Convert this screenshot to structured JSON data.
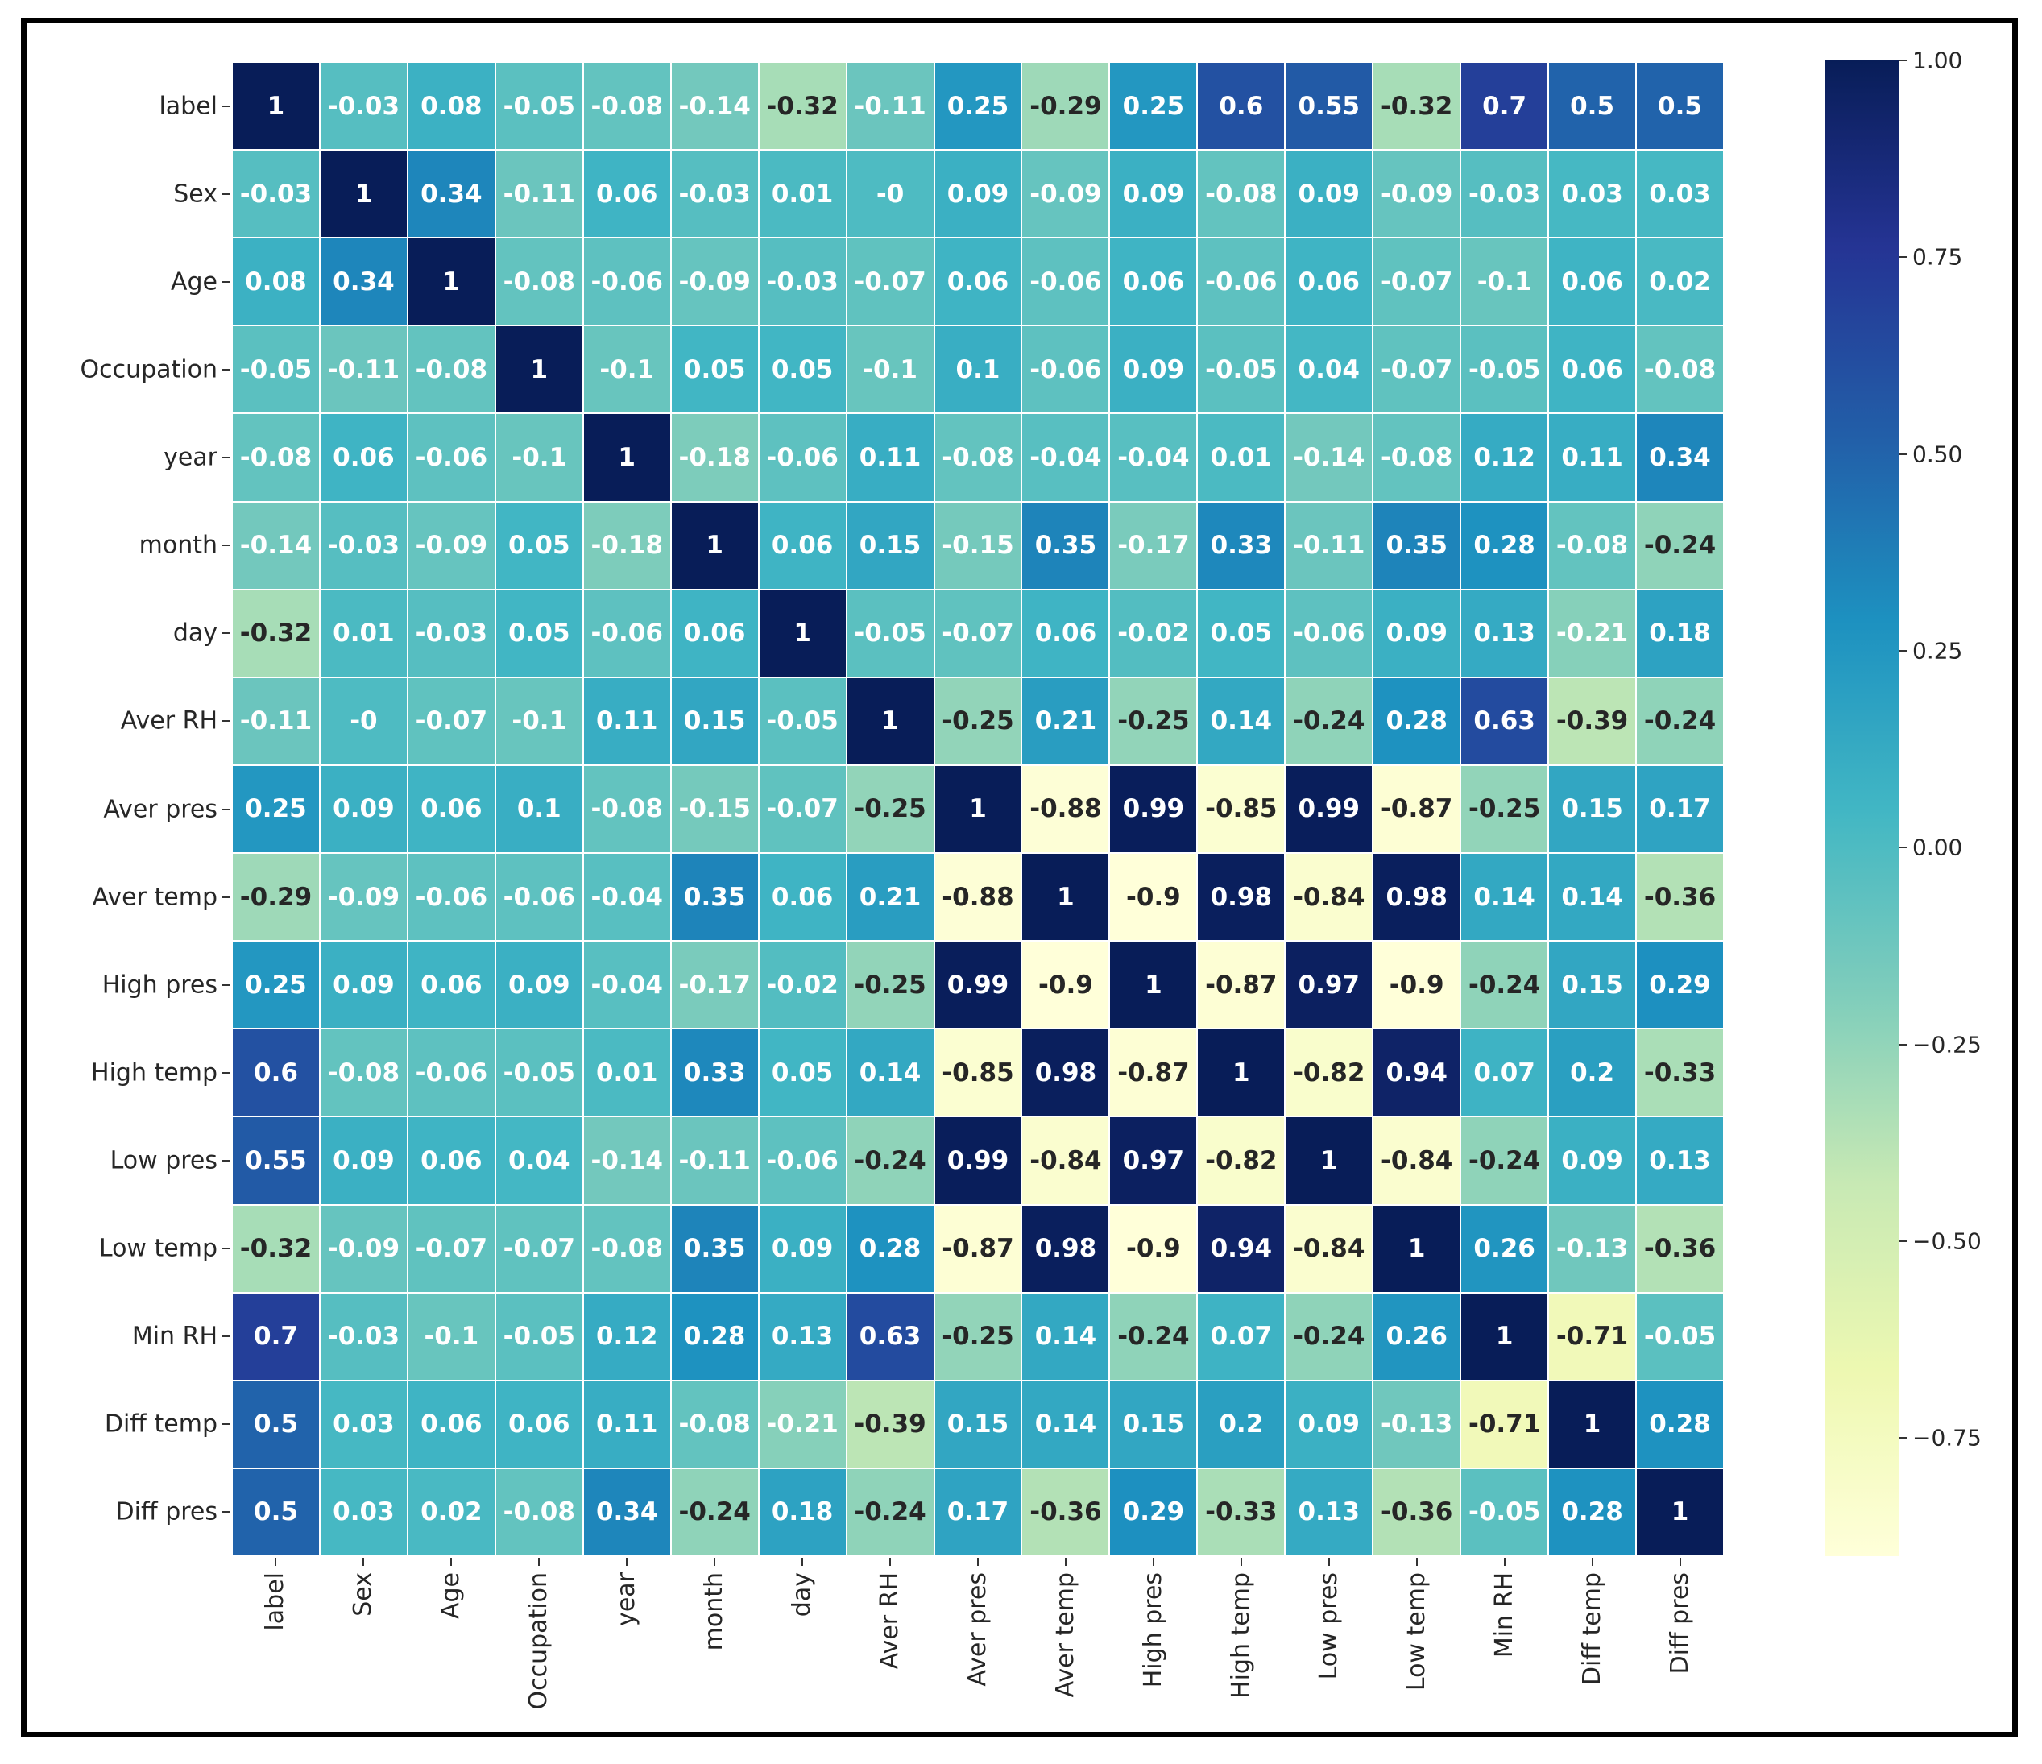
{
  "chart_data": {
    "type": "heatmap",
    "title": "",
    "xlabel": "",
    "ylabel": "",
    "colormap": "YlGnBu",
    "vmin": -0.9,
    "vmax": 1.0,
    "labels": [
      "label",
      "Sex",
      "Age",
      "Occupation",
      "year",
      "month",
      "day",
      "Aver RH",
      "Aver pres",
      "Aver temp",
      "High pres",
      "High temp",
      "Low pres",
      "Low temp",
      "Min RH",
      "Diff temp",
      "Diff pres"
    ],
    "matrix": [
      [
        1,
        -0.03,
        0.08,
        -0.05,
        -0.08,
        -0.14,
        -0.32,
        -0.11,
        0.25,
        -0.29,
        0.25,
        0.6,
        0.55,
        -0.32,
        0.7,
        0.5,
        0.5
      ],
      [
        -0.03,
        1,
        0.34,
        -0.11,
        0.06,
        -0.03,
        0.01,
        -0.0,
        0.09,
        -0.09,
        0.09,
        -0.08,
        0.09,
        -0.09,
        -0.03,
        0.03,
        0.03
      ],
      [
        0.08,
        0.34,
        1,
        -0.08,
        -0.06,
        -0.09,
        -0.03,
        -0.07,
        0.06,
        -0.06,
        0.06,
        -0.06,
        0.06,
        -0.07,
        -0.1,
        0.06,
        0.02
      ],
      [
        -0.05,
        -0.11,
        -0.08,
        1,
        -0.1,
        0.05,
        0.05,
        -0.1,
        0.1,
        -0.06,
        0.09,
        -0.05,
        0.04,
        -0.07,
        -0.05,
        0.06,
        -0.08
      ],
      [
        -0.08,
        0.06,
        -0.06,
        -0.1,
        1,
        -0.18,
        -0.06,
        0.11,
        -0.08,
        -0.04,
        -0.04,
        0.01,
        -0.14,
        -0.08,
        0.12,
        0.11,
        0.34
      ],
      [
        -0.14,
        -0.03,
        -0.09,
        0.05,
        -0.18,
        1,
        0.06,
        0.15,
        -0.15,
        0.35,
        -0.17,
        0.33,
        -0.11,
        0.35,
        0.28,
        -0.08,
        -0.24
      ],
      [
        -0.32,
        0.01,
        -0.03,
        0.05,
        -0.06,
        0.06,
        1,
        -0.05,
        -0.07,
        0.06,
        -0.02,
        0.05,
        -0.06,
        0.09,
        0.13,
        -0.21,
        0.18
      ],
      [
        -0.11,
        -0.0,
        -0.07,
        -0.1,
        0.11,
        0.15,
        -0.05,
        1,
        -0.25,
        0.21,
        -0.25,
        0.14,
        -0.24,
        0.28,
        0.63,
        -0.39,
        -0.24
      ],
      [
        0.25,
        0.09,
        0.06,
        0.1,
        -0.08,
        -0.15,
        -0.07,
        -0.25,
        1,
        -0.88,
        0.99,
        -0.85,
        0.99,
        -0.87,
        -0.25,
        0.15,
        0.17
      ],
      [
        -0.29,
        -0.09,
        -0.06,
        -0.06,
        -0.04,
        0.35,
        0.06,
        0.21,
        -0.88,
        1,
        -0.9,
        0.98,
        -0.84,
        0.98,
        0.14,
        0.14,
        -0.36
      ],
      [
        0.25,
        0.09,
        0.06,
        0.09,
        -0.04,
        -0.17,
        -0.02,
        -0.25,
        0.99,
        -0.9,
        1,
        -0.87,
        0.97,
        -0.9,
        -0.24,
        0.15,
        0.29
      ],
      [
        0.6,
        -0.08,
        -0.06,
        -0.05,
        0.01,
        0.33,
        0.05,
        0.14,
        -0.85,
        0.98,
        -0.87,
        1,
        -0.82,
        0.94,
        0.07,
        0.2,
        -0.33
      ],
      [
        0.55,
        0.09,
        0.06,
        0.04,
        -0.14,
        -0.11,
        -0.06,
        -0.24,
        0.99,
        -0.84,
        0.97,
        -0.82,
        1,
        -0.84,
        -0.24,
        0.09,
        0.13
      ],
      [
        -0.32,
        -0.09,
        -0.07,
        -0.07,
        -0.08,
        0.35,
        0.09,
        0.28,
        -0.87,
        0.98,
        -0.9,
        0.94,
        -0.84,
        1,
        0.26,
        -0.13,
        -0.36
      ],
      [
        0.7,
        -0.03,
        -0.1,
        -0.05,
        0.12,
        0.28,
        0.13,
        0.63,
        -0.25,
        0.14,
        -0.24,
        0.07,
        -0.24,
        0.26,
        1,
        -0.71,
        -0.05
      ],
      [
        0.5,
        0.03,
        0.06,
        0.06,
        0.11,
        -0.08,
        -0.21,
        -0.39,
        0.15,
        0.14,
        0.15,
        0.2,
        0.09,
        -0.13,
        -0.71,
        1,
        0.28
      ],
      [
        0.5,
        0.03,
        0.02,
        -0.08,
        0.34,
        -0.24,
        0.18,
        -0.24,
        0.17,
        -0.36,
        0.29,
        -0.33,
        0.13,
        -0.36,
        -0.05,
        0.28,
        1
      ]
    ],
    "display_text": [
      [
        "1",
        "-0.03",
        "0.08",
        "-0.05",
        "-0.08",
        "-0.14",
        "-0.32",
        "-0.11",
        "0.25",
        "-0.29",
        "0.25",
        "0.6",
        "0.55",
        "-0.32",
        "0.7",
        "0.5",
        "0.5"
      ],
      [
        "-0.03",
        "1",
        "0.34",
        "-0.11",
        "0.06",
        "-0.03",
        "0.01",
        "-0",
        "0.09",
        "-0.09",
        "0.09",
        "-0.08",
        "0.09",
        "-0.09",
        "-0.03",
        "0.03",
        "0.03"
      ],
      [
        "0.08",
        "0.34",
        "1",
        "-0.08",
        "-0.06",
        "-0.09",
        "-0.03",
        "-0.07",
        "0.06",
        "-0.06",
        "0.06",
        "-0.06",
        "0.06",
        "-0.07",
        "-0.1",
        "0.06",
        "0.02"
      ],
      [
        "-0.05",
        "-0.11",
        "-0.08",
        "1",
        "-0.1",
        "0.05",
        "0.05",
        "-0.1",
        "0.1",
        "-0.06",
        "0.09",
        "-0.05",
        "0.04",
        "-0.07",
        "-0.05",
        "0.06",
        "-0.08"
      ],
      [
        "-0.08",
        "0.06",
        "-0.06",
        "-0.1",
        "1",
        "-0.18",
        "-0.06",
        "0.11",
        "-0.08",
        "-0.04",
        "-0.04",
        "0.01",
        "-0.14",
        "-0.08",
        "0.12",
        "0.11",
        "0.34"
      ],
      [
        "-0.14",
        "-0.03",
        "-0.09",
        "0.05",
        "-0.18",
        "1",
        "0.06",
        "0.15",
        "-0.15",
        "0.35",
        "-0.17",
        "0.33",
        "-0.11",
        "0.35",
        "0.28",
        "-0.08",
        "-0.24"
      ],
      [
        "-0.32",
        "0.01",
        "-0.03",
        "0.05",
        "-0.06",
        "0.06",
        "1",
        "-0.05",
        "-0.07",
        "0.06",
        "-0.02",
        "0.05",
        "-0.06",
        "0.09",
        "0.13",
        "-0.21",
        "0.18"
      ],
      [
        "-0.11",
        "-0",
        "-0.07",
        "-0.1",
        "0.11",
        "0.15",
        "-0.05",
        "1",
        "-0.25",
        "0.21",
        "-0.25",
        "0.14",
        "-0.24",
        "0.28",
        "0.63",
        "-0.39",
        "-0.24"
      ],
      [
        "0.25",
        "0.09",
        "0.06",
        "0.1",
        "-0.08",
        "-0.15",
        "-0.07",
        "-0.25",
        "1",
        "-0.88",
        "0.99",
        "-0.85",
        "0.99",
        "-0.87",
        "-0.25",
        "0.15",
        "0.17"
      ],
      [
        "-0.29",
        "-0.09",
        "-0.06",
        "-0.06",
        "-0.04",
        "0.35",
        "0.06",
        "0.21",
        "-0.88",
        "1",
        "-0.9",
        "0.98",
        "-0.84",
        "0.98",
        "0.14",
        "0.14",
        "-0.36"
      ],
      [
        "0.25",
        "0.09",
        "0.06",
        "0.09",
        "-0.04",
        "-0.17",
        "-0.02",
        "-0.25",
        "0.99",
        "-0.9",
        "1",
        "-0.87",
        "0.97",
        "-0.9",
        "-0.24",
        "0.15",
        "0.29"
      ],
      [
        "0.6",
        "-0.08",
        "-0.06",
        "-0.05",
        "0.01",
        "0.33",
        "0.05",
        "0.14",
        "-0.85",
        "0.98",
        "-0.87",
        "1",
        "-0.82",
        "0.94",
        "0.07",
        "0.2",
        "-0.33"
      ],
      [
        "0.55",
        "0.09",
        "0.06",
        "0.04",
        "-0.14",
        "-0.11",
        "-0.06",
        "-0.24",
        "0.99",
        "-0.84",
        "0.97",
        "-0.82",
        "1",
        "-0.84",
        "-0.24",
        "0.09",
        "0.13"
      ],
      [
        "-0.32",
        "-0.09",
        "-0.07",
        "-0.07",
        "-0.08",
        "0.35",
        "0.09",
        "0.28",
        "-0.87",
        "0.98",
        "-0.9",
        "0.94",
        "-0.84",
        "1",
        "0.26",
        "-0.13",
        "-0.36"
      ],
      [
        "0.7",
        "-0.03",
        "-0.1",
        "-0.05",
        "0.12",
        "0.28",
        "0.13",
        "0.63",
        "-0.25",
        "0.14",
        "-0.24",
        "0.07",
        "-0.24",
        "0.26",
        "1",
        "-0.71",
        "-0.05"
      ],
      [
        "0.5",
        "0.03",
        "0.06",
        "0.06",
        "0.11",
        "-0.08",
        "-0.21",
        "-0.39",
        "0.15",
        "0.14",
        "0.15",
        "0.2",
        "0.09",
        "-0.13",
        "-0.71",
        "1",
        "0.28"
      ],
      [
        "0.5",
        "0.03",
        "0.02",
        "-0.08",
        "0.34",
        "-0.24",
        "0.18",
        "-0.24",
        "0.17",
        "-0.36",
        "0.29",
        "-0.33",
        "0.13",
        "-0.36",
        "-0.05",
        "0.28",
        "1"
      ]
    ],
    "colorbar": {
      "ticks": [
        1.0,
        0.75,
        0.5,
        0.25,
        0.0,
        -0.25,
        -0.5,
        -0.75
      ],
      "tick_labels": [
        "1.00",
        "0.75",
        "0.50",
        "0.25",
        "0.00",
        "−0.25",
        "−0.50",
        "−0.75"
      ],
      "position": "right"
    },
    "grid": false,
    "annotated": true
  },
  "colors": {
    "frame_border": "#000000",
    "cell_separator": "#ffffff",
    "text_dark": "#262626",
    "text_light": "#ffffff",
    "colormap_stops": [
      "#ffffd9",
      "#edf8b1",
      "#c7e9b4",
      "#7fcdbb",
      "#41b6c4",
      "#1d91c0",
      "#225ea8",
      "#253494",
      "#081d58"
    ]
  }
}
